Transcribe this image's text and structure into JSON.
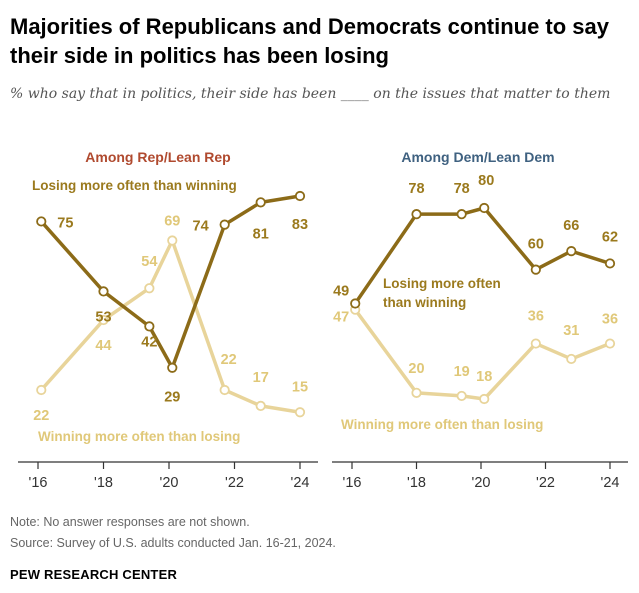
{
  "title": "Majorities of Republicans and Democrats continue to say their side in politics has been losing",
  "subtitle": "% who say that in politics, their side has been ____ on the issues that matter to them",
  "note": "Note: No answer responses are not shown.",
  "source": "Source: Survey of U.S. adults conducted Jan. 16-21, 2024.",
  "org": "PEW RESEARCH CENTER",
  "colors": {
    "losing": "#8c6b18",
    "winning": "#e8d49a",
    "losing_label": "#9b7a1e",
    "winning_label": "#e0c879",
    "rep_title": "#b04a2f",
    "dem_title": "#3f6180",
    "axis": "#333333"
  },
  "chart_data": [
    {
      "type": "line",
      "title": "Among Rep/Lean Rep",
      "x_ticks": [
        "'16",
        "'18",
        "'20",
        "'22",
        "'24"
      ],
      "xlim": [
        2016,
        2024
      ],
      "ylim": [
        0,
        100
      ],
      "series": [
        {
          "name": "Losing more often than winning",
          "points": [
            {
              "x": 2016.1,
              "y": 75
            },
            {
              "x": 2018.0,
              "y": 53
            },
            {
              "x": 2019.4,
              "y": 42
            },
            {
              "x": 2020.1,
              "y": 29
            },
            {
              "x": 2021.7,
              "y": 74
            },
            {
              "x": 2022.8,
              "y": 81
            },
            {
              "x": 2024.0,
              "y": 83
            }
          ]
        },
        {
          "name": "Winning more often than losing",
          "points": [
            {
              "x": 2016.1,
              "y": 22
            },
            {
              "x": 2018.0,
              "y": 44
            },
            {
              "x": 2019.4,
              "y": 54
            },
            {
              "x": 2020.1,
              "y": 69
            },
            {
              "x": 2021.7,
              "y": 22
            },
            {
              "x": 2022.8,
              "y": 17
            },
            {
              "x": 2024.0,
              "y": 15
            }
          ]
        }
      ]
    },
    {
      "type": "line",
      "title": "Among Dem/Lean Dem",
      "x_ticks": [
        "'16",
        "'18",
        "'20",
        "'22",
        "'24"
      ],
      "xlim": [
        2016,
        2024
      ],
      "ylim": [
        0,
        100
      ],
      "series": [
        {
          "name": "Losing more often than winning",
          "points": [
            {
              "x": 2016.1,
              "y": 49
            },
            {
              "x": 2018.0,
              "y": 78
            },
            {
              "x": 2019.4,
              "y": 78
            },
            {
              "x": 2020.1,
              "y": 80
            },
            {
              "x": 2021.7,
              "y": 60
            },
            {
              "x": 2022.8,
              "y": 66
            },
            {
              "x": 2024.0,
              "y": 62
            }
          ]
        },
        {
          "name": "Winning more often than losing",
          "points": [
            {
              "x": 2016.1,
              "y": 47
            },
            {
              "x": 2018.0,
              "y": 20
            },
            {
              "x": 2019.4,
              "y": 19
            },
            {
              "x": 2020.1,
              "y": 18
            },
            {
              "x": 2021.7,
              "y": 36
            },
            {
              "x": 2022.8,
              "y": 31
            },
            {
              "x": 2024.0,
              "y": 36
            }
          ]
        }
      ]
    }
  ]
}
